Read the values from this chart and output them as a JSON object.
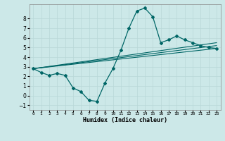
{
  "title": "",
  "xlabel": "Humidex (Indice chaleur)",
  "ylabel": "",
  "background_color": "#cce8e8",
  "grid_color": "#b8d8d8",
  "line_color": "#006666",
  "xlim": [
    -0.5,
    23.5
  ],
  "ylim": [
    -1.5,
    9.5
  ],
  "yticks": [
    -1,
    0,
    1,
    2,
    3,
    4,
    5,
    6,
    7,
    8
  ],
  "xticks": [
    0,
    1,
    2,
    3,
    4,
    5,
    6,
    7,
    8,
    9,
    10,
    11,
    12,
    13,
    14,
    15,
    16,
    17,
    18,
    19,
    20,
    21,
    22,
    23
  ],
  "line_main_x": [
    0,
    1,
    2,
    3,
    4,
    5,
    6,
    7,
    8,
    9,
    10,
    11,
    12,
    13,
    14,
    15,
    16,
    17,
    18,
    19,
    20,
    21,
    22,
    23
  ],
  "line_main_y": [
    2.8,
    2.4,
    2.1,
    2.3,
    2.1,
    0.8,
    0.4,
    -0.5,
    -0.6,
    1.3,
    2.8,
    4.7,
    7.0,
    8.8,
    9.1,
    8.2,
    5.5,
    5.8,
    6.2,
    5.8,
    5.5,
    5.2,
    5.0,
    4.9
  ],
  "line2_x": [
    0,
    23
  ],
  "line2_y": [
    2.8,
    5.5
  ],
  "line3_x": [
    0,
    23
  ],
  "line3_y": [
    2.8,
    5.2
  ],
  "line4_x": [
    0,
    23
  ],
  "line4_y": [
    2.8,
    4.9
  ]
}
